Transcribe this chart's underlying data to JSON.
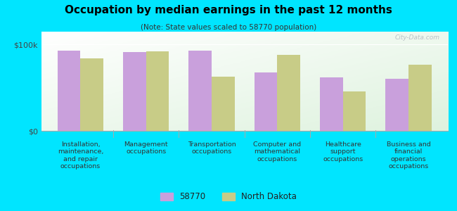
{
  "title": "Occupation by median earnings in the past 12 months",
  "subtitle": "(Note: State values scaled to 58770 population)",
  "categories": [
    "Installation,\nmaintenance,\nand repair\noccupations",
    "Management\noccupations",
    "Transportation\noccupations",
    "Computer and\nmathematical\noccupations",
    "Healthcare\nsupport\noccupations",
    "Business and\nfinancial\noperations\noccupations"
  ],
  "values_58770": [
    93000,
    91000,
    93000,
    68000,
    62000,
    60000
  ],
  "values_nd": [
    84000,
    92000,
    63000,
    88000,
    46000,
    77000
  ],
  "color_58770": "#c9a0dc",
  "color_nd": "#c8cc87",
  "ylim": [
    0,
    115000
  ],
  "yticks": [
    0,
    100000
  ],
  "ytick_labels": [
    "$0",
    "$100k"
  ],
  "outer_background": "#00e5ff",
  "bar_width": 0.35,
  "legend_label_58770": "58770",
  "legend_label_nd": "North Dakota",
  "watermark": "City-Data.com"
}
